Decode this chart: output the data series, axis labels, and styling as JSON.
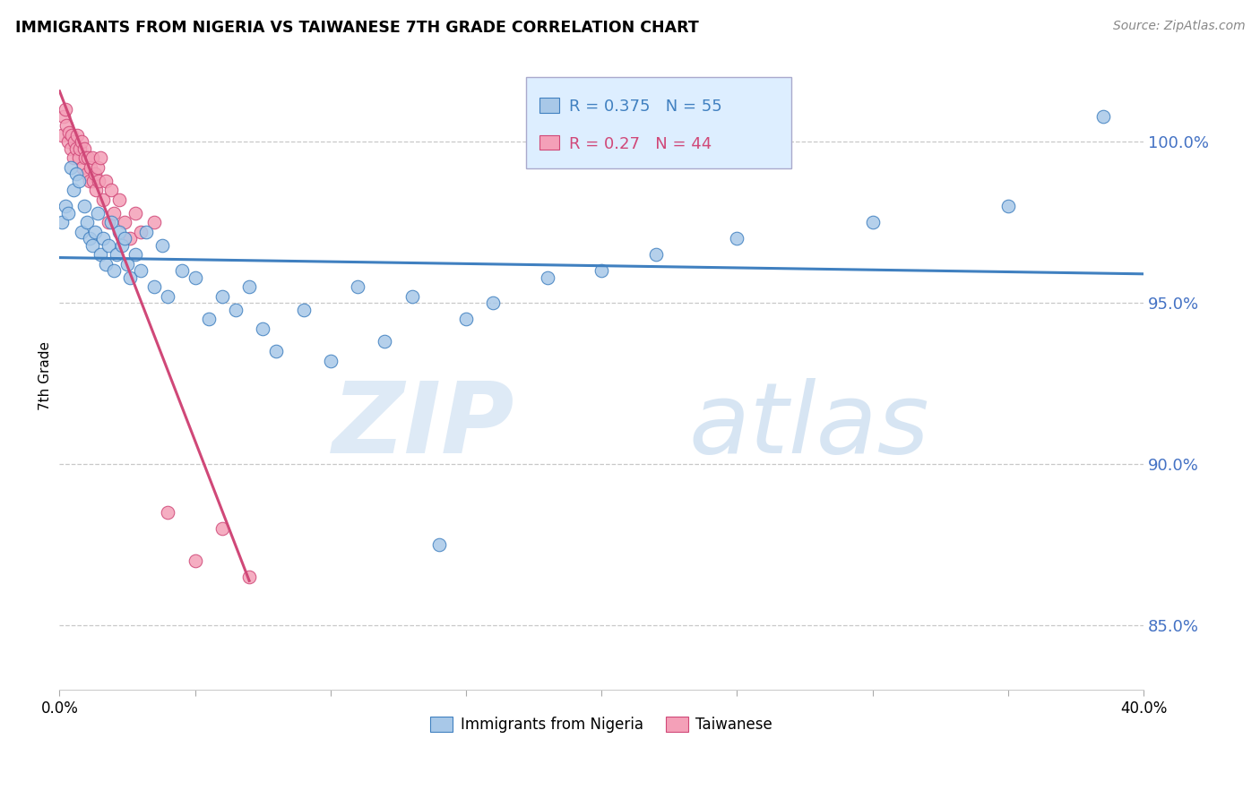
{
  "title": "IMMIGRANTS FROM NIGERIA VS TAIWANESE 7TH GRADE CORRELATION CHART",
  "source": "Source: ZipAtlas.com",
  "ylabel": "7th Grade",
  "xmin": 0.0,
  "xmax": 40.0,
  "ymin": 83.0,
  "ymax": 102.5,
  "yticks": [
    85.0,
    90.0,
    95.0,
    100.0
  ],
  "ytick_labels": [
    "85.0%",
    "90.0%",
    "95.0%",
    "100.0%"
  ],
  "xticks": [
    0.0,
    5.0,
    10.0,
    15.0,
    20.0,
    25.0,
    30.0,
    35.0,
    40.0
  ],
  "nigeria_R": 0.375,
  "nigeria_N": 55,
  "taiwanese_R": 0.27,
  "taiwanese_N": 44,
  "nigeria_color": "#a8c8e8",
  "taiwanese_color": "#f4a0b8",
  "nigeria_line_color": "#4080c0",
  "taiwanese_line_color": "#d04878",
  "legend_box_facecolor": "#ddeeff",
  "legend_R_color_nigeria": "#4080c0",
  "legend_R_color_taiwanese": "#d04878",
  "watermark_zip_color": "#c8dcf0",
  "watermark_atlas_color": "#b0cce8",
  "nigeria_x": [
    0.1,
    0.2,
    0.3,
    0.4,
    0.5,
    0.6,
    0.7,
    0.8,
    0.9,
    1.0,
    1.1,
    1.2,
    1.3,
    1.4,
    1.5,
    1.6,
    1.7,
    1.8,
    1.9,
    2.0,
    2.1,
    2.2,
    2.3,
    2.4,
    2.5,
    2.6,
    2.8,
    3.0,
    3.2,
    3.5,
    3.8,
    4.0,
    4.5,
    5.0,
    5.5,
    6.0,
    6.5,
    7.0,
    7.5,
    8.0,
    9.0,
    10.0,
    11.0,
    12.0,
    13.0,
    14.0,
    15.0,
    16.0,
    18.0,
    20.0,
    22.0,
    25.0,
    30.0,
    35.0,
    38.5
  ],
  "nigeria_y": [
    97.5,
    98.0,
    97.8,
    99.2,
    98.5,
    99.0,
    98.8,
    97.2,
    98.0,
    97.5,
    97.0,
    96.8,
    97.2,
    97.8,
    96.5,
    97.0,
    96.2,
    96.8,
    97.5,
    96.0,
    96.5,
    97.2,
    96.8,
    97.0,
    96.2,
    95.8,
    96.5,
    96.0,
    97.2,
    95.5,
    96.8,
    95.2,
    96.0,
    95.8,
    94.5,
    95.2,
    94.8,
    95.5,
    94.2,
    93.5,
    94.8,
    93.2,
    95.5,
    93.8,
    95.2,
    87.5,
    94.5,
    95.0,
    95.8,
    96.0,
    96.5,
    97.0,
    97.5,
    98.0,
    100.8
  ],
  "taiwanese_x": [
    0.1,
    0.15,
    0.2,
    0.25,
    0.3,
    0.35,
    0.4,
    0.45,
    0.5,
    0.55,
    0.6,
    0.65,
    0.7,
    0.75,
    0.8,
    0.85,
    0.9,
    0.95,
    1.0,
    1.05,
    1.1,
    1.15,
    1.2,
    1.25,
    1.3,
    1.35,
    1.4,
    1.45,
    1.5,
    1.6,
    1.7,
    1.8,
    1.9,
    2.0,
    2.2,
    2.4,
    2.6,
    2.8,
    3.0,
    3.5,
    4.0,
    5.0,
    6.0,
    7.0
  ],
  "taiwanese_y": [
    100.2,
    100.8,
    101.0,
    100.5,
    100.0,
    100.3,
    99.8,
    100.2,
    99.5,
    100.0,
    99.8,
    100.2,
    99.5,
    99.8,
    100.0,
    99.2,
    99.8,
    99.5,
    99.0,
    99.5,
    98.8,
    99.2,
    99.5,
    98.8,
    99.0,
    98.5,
    99.2,
    98.8,
    99.5,
    98.2,
    98.8,
    97.5,
    98.5,
    97.8,
    98.2,
    97.5,
    97.0,
    97.8,
    97.2,
    97.5,
    88.5,
    87.0,
    88.0,
    86.5
  ]
}
